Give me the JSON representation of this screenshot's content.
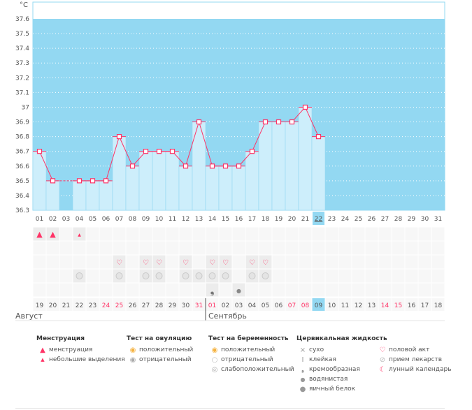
{
  "chart_data": {
    "type": "line",
    "unit_label": "°C",
    "ylim": [
      36.3,
      37.6
    ],
    "yticks": [
      "36.3",
      "36.4",
      "36.5",
      "36.6",
      "36.7",
      "36.8",
      "36.9",
      "37",
      "37.1",
      "37.2",
      "37.3",
      "37.4",
      "37.5",
      "37.6"
    ],
    "cycle_days": [
      "01",
      "02",
      "03",
      "04",
      "05",
      "06",
      "07",
      "08",
      "09",
      "10",
      "11",
      "12",
      "13",
      "14",
      "15",
      "16",
      "17",
      "18",
      "19",
      "20",
      "21",
      "22",
      "23",
      "24",
      "25",
      "26",
      "27",
      "28",
      "29",
      "30",
      "31"
    ],
    "temperatures": [
      36.7,
      36.5,
      null,
      36.5,
      36.5,
      36.5,
      36.8,
      36.6,
      36.7,
      36.7,
      36.7,
      36.6,
      36.9,
      36.6,
      36.6,
      36.6,
      36.7,
      36.9,
      36.9,
      36.9,
      37.0,
      36.8,
      null,
      null,
      null,
      null,
      null,
      null,
      null,
      null,
      null
    ],
    "today_index": 21,
    "dates": [
      "19",
      "20",
      "21",
      "22",
      "23",
      "24",
      "25",
      "26",
      "27",
      "28",
      "29",
      "30",
      "31",
      "01",
      "02",
      "03",
      "04",
      "05",
      "06",
      "07",
      "08",
      "09",
      "10",
      "11",
      "12",
      "13",
      "14",
      "15",
      "16",
      "17",
      "18"
    ],
    "weekend_dates_idx": [
      5,
      6,
      12,
      13,
      19,
      20,
      26,
      27
    ],
    "month_start_idx": 13,
    "months": [
      "Август",
      "Сентябрь"
    ],
    "rows": {
      "menstruation": {
        "0": "heavy",
        "1": "heavy",
        "3": "light"
      },
      "ovulation": {},
      "intercourse": [
        6,
        8,
        9,
        11,
        13,
        14,
        16,
        17
      ],
      "medication": [
        3,
        6,
        8,
        9,
        11,
        12,
        13,
        14,
        16,
        17
      ],
      "cervical": {
        "13": "creamy",
        "15": "watery"
      }
    },
    "colors": {
      "bg": "#93d8f2",
      "bar": "#cdeefb",
      "line": "#ff3366",
      "weekend": "#ff3366",
      "today": "#93d8f2"
    }
  },
  "legend": {
    "menstruation": {
      "title": "Менструация",
      "items": [
        "менструация",
        "небольшие выделения"
      ]
    },
    "ovulation_test": {
      "title": "Тест на овуляцию",
      "items": [
        "положительный",
        "отрицательный"
      ]
    },
    "pregnancy_test": {
      "title": "Тест на беременность",
      "items": [
        "положительный",
        "отрицательный",
        "слабоположительный"
      ]
    },
    "cervical": {
      "title": "Цервикальная жидкость",
      "items": [
        "сухо",
        "клейкая",
        "кремообразная",
        "водянистая",
        "яичный белок"
      ]
    },
    "other": {
      "items": [
        "половой акт",
        "прием лекарств",
        "лунный календарь"
      ]
    }
  }
}
